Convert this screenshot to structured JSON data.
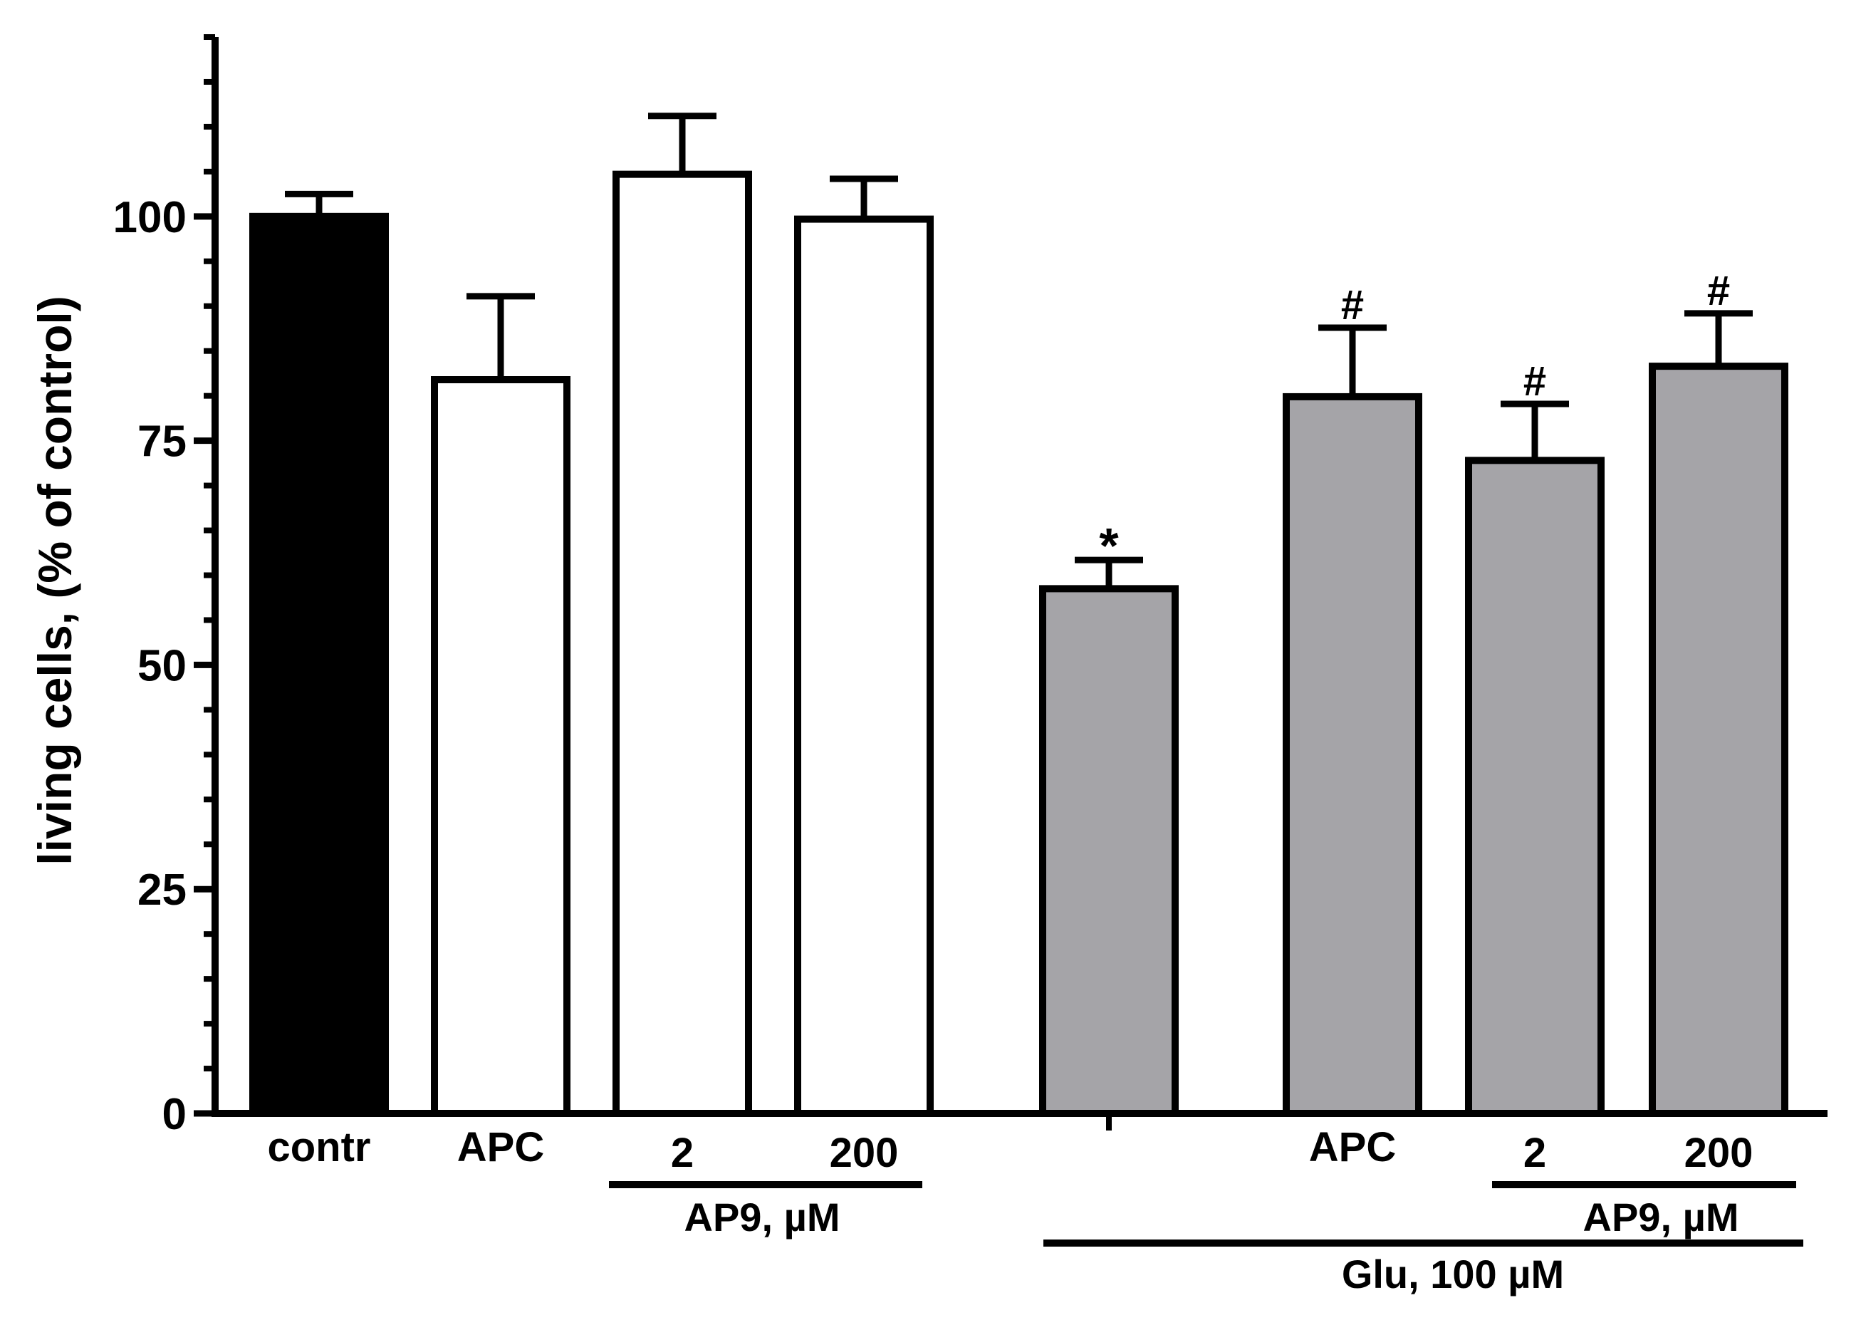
{
  "chart_data": {
    "type": "bar",
    "categories": [
      "contr",
      "APC",
      "2",
      "200",
      "",
      "APC",
      "2",
      "200"
    ],
    "values": [
      100,
      81.8,
      104.7,
      99.7,
      58.5,
      79.9,
      72.8,
      83.3
    ],
    "errors": [
      2.5,
      9.3,
      6.5,
      4.5,
      3.2,
      7.7,
      6.3,
      5.9
    ],
    "bar_colors": [
      "#000000",
      "#ffffff",
      "#ffffff",
      "#ffffff",
      "#a5a4a8",
      "#a5a4a8",
      "#a5a4a8",
      "#a5a4a8"
    ],
    "significance": [
      "",
      "",
      "",
      "",
      "*",
      "#",
      "#",
      "#"
    ],
    "ylabel": "living cells, (% of control)",
    "xlabel": "",
    "ylim": [
      0,
      120
    ],
    "yticks": [
      0,
      25,
      50,
      75,
      100
    ],
    "ytick_labels": [
      "0",
      "25",
      "50",
      "75",
      "100"
    ],
    "minor_tick_step": 5,
    "grid": false,
    "group_labels": [
      {
        "text": "AP9, µM",
        "from": 2,
        "to": 3
      },
      {
        "text": "AP9, µM",
        "from": 6,
        "to": 7
      },
      {
        "text": "Glu, 100 µM",
        "from": 4,
        "to": 7
      }
    ]
  },
  "colors": {
    "axis": "#000000",
    "control_bar": "#000000",
    "open_bar": "#ffffff",
    "glutamate_bar": "#a5a4a8"
  }
}
